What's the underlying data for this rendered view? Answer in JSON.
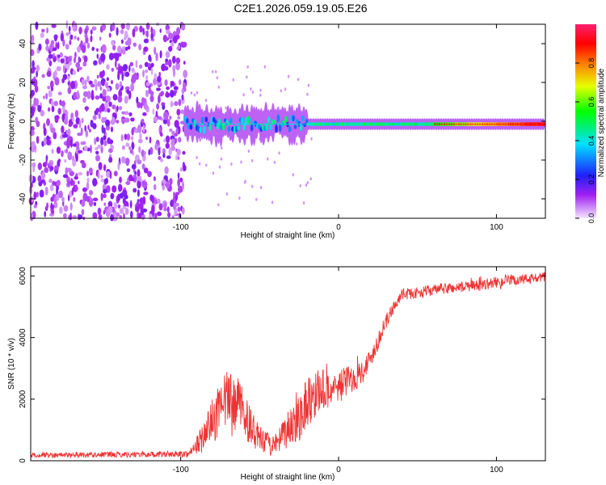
{
  "title": "C2E1.2026.059.19.05.E26",
  "colors": {
    "line": "#ee3333",
    "axis": "#000000",
    "background": "#ffffff"
  },
  "chart_data": [
    {
      "type": "heatmap",
      "xlabel": "Height of straight line (km)",
      "ylabel": "Frequency (Hz)",
      "xlim": [
        -195,
        131
      ],
      "ylim": [
        -50,
        50
      ],
      "xticks": [
        -100,
        0,
        100
      ],
      "yticks": [
        -40,
        -20,
        0,
        20,
        40
      ],
      "colorbar": {
        "label": "Normalized spectral amplitude",
        "range": [
          0,
          1
        ],
        "ticks": [
          0.0,
          0.2,
          0.4,
          0.6,
          0.8
        ],
        "tick_labels": [
          "0.0",
          "0.2",
          "0.4",
          "0.6",
          "0.8"
        ]
      },
      "features": [
        {
          "name": "noise region",
          "x_range": [
            -195,
            -97
          ],
          "freq_range": [
            -50,
            50
          ],
          "amplitude": 0.12
        },
        {
          "name": "carrier band",
          "x_range": [
            -97,
            131
          ],
          "center_freq_hz": -1.5,
          "peak_amplitude": 0.95
        }
      ]
    },
    {
      "type": "line",
      "xlabel": "Height of straight line (km)",
      "ylabel": "SNR (10 * v/v)",
      "xlim": [
        -195,
        131
      ],
      "ylim": [
        0,
        6300
      ],
      "xticks": [
        -100,
        0,
        100
      ],
      "yticks": [
        0,
        2000,
        4000,
        6000
      ],
      "series": [
        {
          "name": "SNR",
          "x": [
            -195,
            -150,
            -110,
            -95,
            -88,
            -80,
            -75,
            -70,
            -62,
            -55,
            -48,
            -40,
            -35,
            -30,
            -25,
            -20,
            -15,
            -10,
            -5,
            0,
            5,
            10,
            15,
            20,
            25,
            30,
            35,
            40,
            50,
            60,
            70,
            80,
            90,
            100,
            110,
            120,
            131
          ],
          "values": [
            180,
            200,
            210,
            220,
            600,
            1300,
            1600,
            2000,
            1800,
            1000,
            600,
            500,
            800,
            1200,
            1500,
            1900,
            2200,
            2300,
            2300,
            2400,
            2600,
            2700,
            2900,
            3300,
            3900,
            4500,
            5000,
            5400,
            5450,
            5550,
            5600,
            5650,
            5700,
            5800,
            5850,
            5900,
            5950
          ],
          "noise_amplitude": [
            80,
            90,
            100,
            100,
            400,
            700,
            900,
            1000,
            800,
            600,
            400,
            350,
            500,
            700,
            900,
            900,
            800,
            700,
            600,
            550,
            500,
            450,
            400,
            350,
            300,
            250,
            200,
            180,
            180,
            180,
            180,
            180,
            180,
            180,
            180,
            180,
            180
          ]
        }
      ]
    }
  ]
}
